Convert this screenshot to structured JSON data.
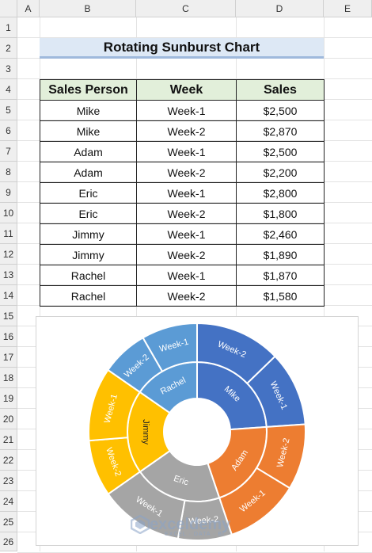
{
  "columns": [
    "A",
    "B",
    "C",
    "D",
    "E"
  ],
  "rows": [
    "1",
    "2",
    "3",
    "4",
    "5",
    "6",
    "7",
    "8",
    "9",
    "10",
    "11",
    "12",
    "13",
    "14",
    "15",
    "16",
    "17",
    "18",
    "19",
    "20",
    "21",
    "22",
    "23",
    "24",
    "25",
    "26"
  ],
  "title": "Rotating Sunburst Chart",
  "table": {
    "headers": [
      "Sales Person",
      "Week",
      "Sales"
    ],
    "rows": [
      [
        "Mike",
        "Week-1",
        "$2,500"
      ],
      [
        "Mike",
        "Week-2",
        "$2,870"
      ],
      [
        "Adam",
        "Week-1",
        "$2,500"
      ],
      [
        "Adam",
        "Week-2",
        "$2,200"
      ],
      [
        "Eric",
        "Week-1",
        "$2,800"
      ],
      [
        "Eric",
        "Week-2",
        "$1,800"
      ],
      [
        "Jimmy",
        "Week-1",
        "$2,460"
      ],
      [
        "Jimmy",
        "Week-2",
        "$1,890"
      ],
      [
        "Rachel",
        "Week-1",
        "$1,870"
      ],
      [
        "Rachel",
        "Week-2",
        "$1,580"
      ]
    ]
  },
  "chart_data": {
    "type": "sunburst",
    "title": "",
    "groups": [
      {
        "name": "Mike",
        "color": "#4472c4",
        "children": [
          {
            "name": "Week-1",
            "value": 2500
          },
          {
            "name": "Week-2",
            "value": 2870
          }
        ]
      },
      {
        "name": "Adam",
        "color": "#ed7d31",
        "children": [
          {
            "name": "Week-1",
            "value": 2500
          },
          {
            "name": "Week-2",
            "value": 2200
          }
        ]
      },
      {
        "name": "Eric",
        "color": "#a5a5a5",
        "children": [
          {
            "name": "Week-1",
            "value": 2800
          },
          {
            "name": "Week-2",
            "value": 1800
          }
        ]
      },
      {
        "name": "Jimmy",
        "color": "#ffc000",
        "children": [
          {
            "name": "Week-1",
            "value": 2460
          },
          {
            "name": "Week-2",
            "value": 1890
          }
        ]
      },
      {
        "name": "Rachel",
        "color": "#5b9bd5",
        "children": [
          {
            "name": "Week-1",
            "value": 1870
          },
          {
            "name": "Week-2",
            "value": 1580
          }
        ]
      }
    ]
  },
  "watermark": {
    "brand": "exceldemy",
    "tagline": "EXCEL · DATA · BI"
  }
}
